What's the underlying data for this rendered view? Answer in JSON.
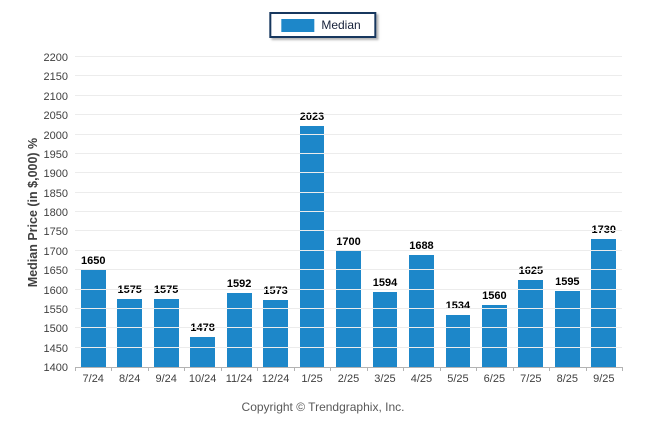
{
  "legend": {
    "label": "Median",
    "swatch_color": "#1d87c9",
    "border_color": "#17375e"
  },
  "footer": {
    "text": "Copyright © Trendgraphix, Inc."
  },
  "chart_data": {
    "type": "bar",
    "title": "",
    "xlabel": "",
    "ylabel": "Median Price (in $,000) %",
    "categories": [
      "7/24",
      "8/24",
      "9/24",
      "10/24",
      "11/24",
      "12/24",
      "1/25",
      "2/25",
      "3/25",
      "4/25",
      "5/25",
      "6/25",
      "7/25",
      "8/25",
      "9/25"
    ],
    "values": [
      1650,
      1575,
      1575,
      1478,
      1592,
      1573,
      2023,
      1700,
      1594,
      1688,
      1534,
      1560,
      1625,
      1595,
      1730
    ],
    "ylim": [
      1400,
      2200
    ],
    "ytick_step": 50,
    "bar_color": "#1d87c9",
    "grid": "horizontal",
    "legend_position": "top-center",
    "legend_entries": [
      "Median"
    ]
  }
}
